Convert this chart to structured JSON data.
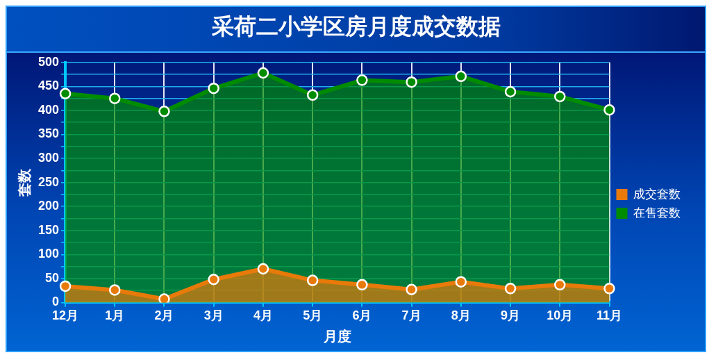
{
  "chart_data": {
    "type": "area",
    "title": "采荷二小学区房月度成交数据",
    "xlabel": "月度",
    "ylabel": "套数",
    "categories": [
      "12月",
      "1月",
      "2月",
      "3月",
      "4月",
      "5月",
      "6月",
      "7月",
      "8月",
      "9月",
      "10月",
      "11月"
    ],
    "series": [
      {
        "name": "成交套数",
        "color": "#e87a0a",
        "values": [
          34,
          26,
          7,
          48,
          70,
          46,
          37,
          27,
          43,
          29,
          37,
          29
        ]
      },
      {
        "name": "在售套数",
        "color": "#008c00",
        "values": [
          435,
          425,
          398,
          446,
          478,
          432,
          463,
          459,
          471,
          439,
          429,
          401
        ]
      }
    ],
    "ylim": [
      0,
      500
    ],
    "yticks": [
      0,
      {
        "value": 25,
        "label": null
      },
      50,
      {
        "value": 75,
        "label": null
      },
      100,
      {
        "value": 125,
        "label": null
      },
      150,
      {
        "value": 175,
        "label": null
      },
      200,
      {
        "value": 225,
        "label": null
      },
      250,
      {
        "value": 275,
        "label": null
      },
      300,
      {
        "value": 325,
        "label": null
      },
      350,
      {
        "value": 375,
        "label": null
      },
      400,
      {
        "value": 425,
        "label": null
      },
      450,
      {
        "value": 475,
        "label": null
      },
      500
    ],
    "grid": true,
    "legend": "right",
    "marker": "circle",
    "line_style": "solid"
  }
}
